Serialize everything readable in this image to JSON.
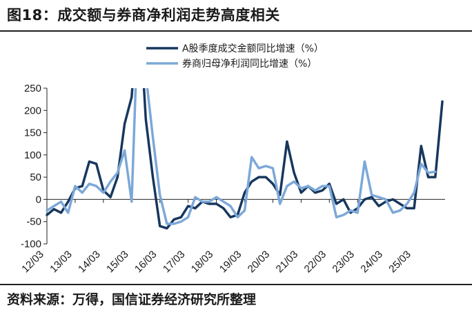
{
  "title": "图18：成交额与券商净利润走势高度相关",
  "source": "资料来源：万得，国信证券经济研究所整理",
  "chart_data": {
    "type": "line",
    "ylim": [
      -100,
      250
    ],
    "yticks": [
      -100,
      -50,
      0,
      50,
      100,
      150,
      200,
      250
    ],
    "ytick_labels": [
      "-100",
      "-50",
      "0",
      "50",
      "100",
      "150",
      "200",
      "250"
    ],
    "x_tick_labels": [
      "12/03",
      "13/03",
      "14/03",
      "15/03",
      "16/03",
      "17/03",
      "18/03",
      "19/03",
      "20/03",
      "21/03",
      "22/03",
      "23/03",
      "24/03",
      "25/03"
    ],
    "x_start": "2012/03",
    "legend_position": "top",
    "series": [
      {
        "name": "A股季度成交金额同比增速（%）",
        "color": "#17375e",
        "values": [
          -35,
          -22,
          -30,
          -5,
          25,
          30,
          85,
          80,
          20,
          5,
          50,
          170,
          230,
          450,
          180,
          50,
          -60,
          -65,
          -45,
          -40,
          -15,
          -20,
          -5,
          -10,
          -10,
          -20,
          -40,
          -35,
          15,
          40,
          50,
          50,
          35,
          10,
          130,
          60,
          15,
          30,
          15,
          20,
          35,
          -10,
          0,
          -30,
          -20,
          0,
          5,
          -15,
          -5,
          0,
          -10,
          -20,
          -20,
          120,
          50,
          50,
          220
        ]
      },
      {
        "name": "券商归母净利润同比增速（%）",
        "color": "#7ca8d8",
        "values": [
          -25,
          -15,
          -5,
          -30,
          30,
          15,
          35,
          30,
          15,
          40,
          60,
          110,
          -5,
          450,
          280,
          140,
          10,
          -55,
          -55,
          -50,
          -40,
          5,
          -5,
          -5,
          5,
          -5,
          -15,
          -40,
          -25,
          95,
          70,
          75,
          70,
          -10,
          30,
          40,
          25,
          30,
          20,
          30,
          30,
          -40,
          -35,
          -25,
          -30,
          85,
          10,
          5,
          0,
          -30,
          -25,
          -10,
          15,
          80,
          60,
          62
        ]
      }
    ]
  }
}
